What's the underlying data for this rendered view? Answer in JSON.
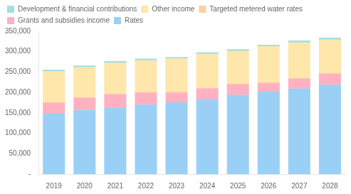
{
  "chart_data": {
    "type": "bar",
    "stacked": true,
    "grid": false,
    "legend": "top",
    "categories": [
      "2019",
      "2020",
      "2021",
      "2022",
      "2023",
      "2024",
      "2025",
      "2026",
      "2027",
      "2028"
    ],
    "series": [
      {
        "name": "Rates",
        "values": [
          148000,
          157000,
          163000,
          170000,
          176000,
          184000,
          194000,
          202000,
          210000,
          219000
        ]
      },
      {
        "name": "Grants and subsidies income",
        "values": [
          27000,
          30000,
          33000,
          30000,
          24000,
          26000,
          26000,
          21000,
          24000,
          27000
        ]
      },
      {
        "name": "Targeted metered water rates",
        "values": [
          1000,
          1000,
          1000,
          1000,
          1500,
          1500,
          1500,
          1500,
          1500,
          1500
        ]
      },
      {
        "name": "Other income",
        "values": [
          76000,
          74000,
          76000,
          78000,
          82000,
          83000,
          80000,
          89000,
          87000,
          82000
        ]
      },
      {
        "name": "Development & financial contributions",
        "values": [
          4000,
          4000,
          4000,
          4000,
          3500,
          4000,
          4500,
          3500,
          5000,
          5000
        ]
      }
    ],
    "ylim": [
      0,
      350000
    ],
    "yticks": [
      {
        "value": 0,
        "label": "-"
      },
      {
        "value": 50000,
        "label": "50,000"
      },
      {
        "value": 100000,
        "label": "100,000"
      },
      {
        "value": 150000,
        "label": "150,000"
      },
      {
        "value": 200000,
        "label": "200,000"
      },
      {
        "value": 250000,
        "label": "250,000"
      },
      {
        "value": 300000,
        "label": "300,000"
      },
      {
        "value": 350000,
        "label": "350,000"
      }
    ]
  }
}
